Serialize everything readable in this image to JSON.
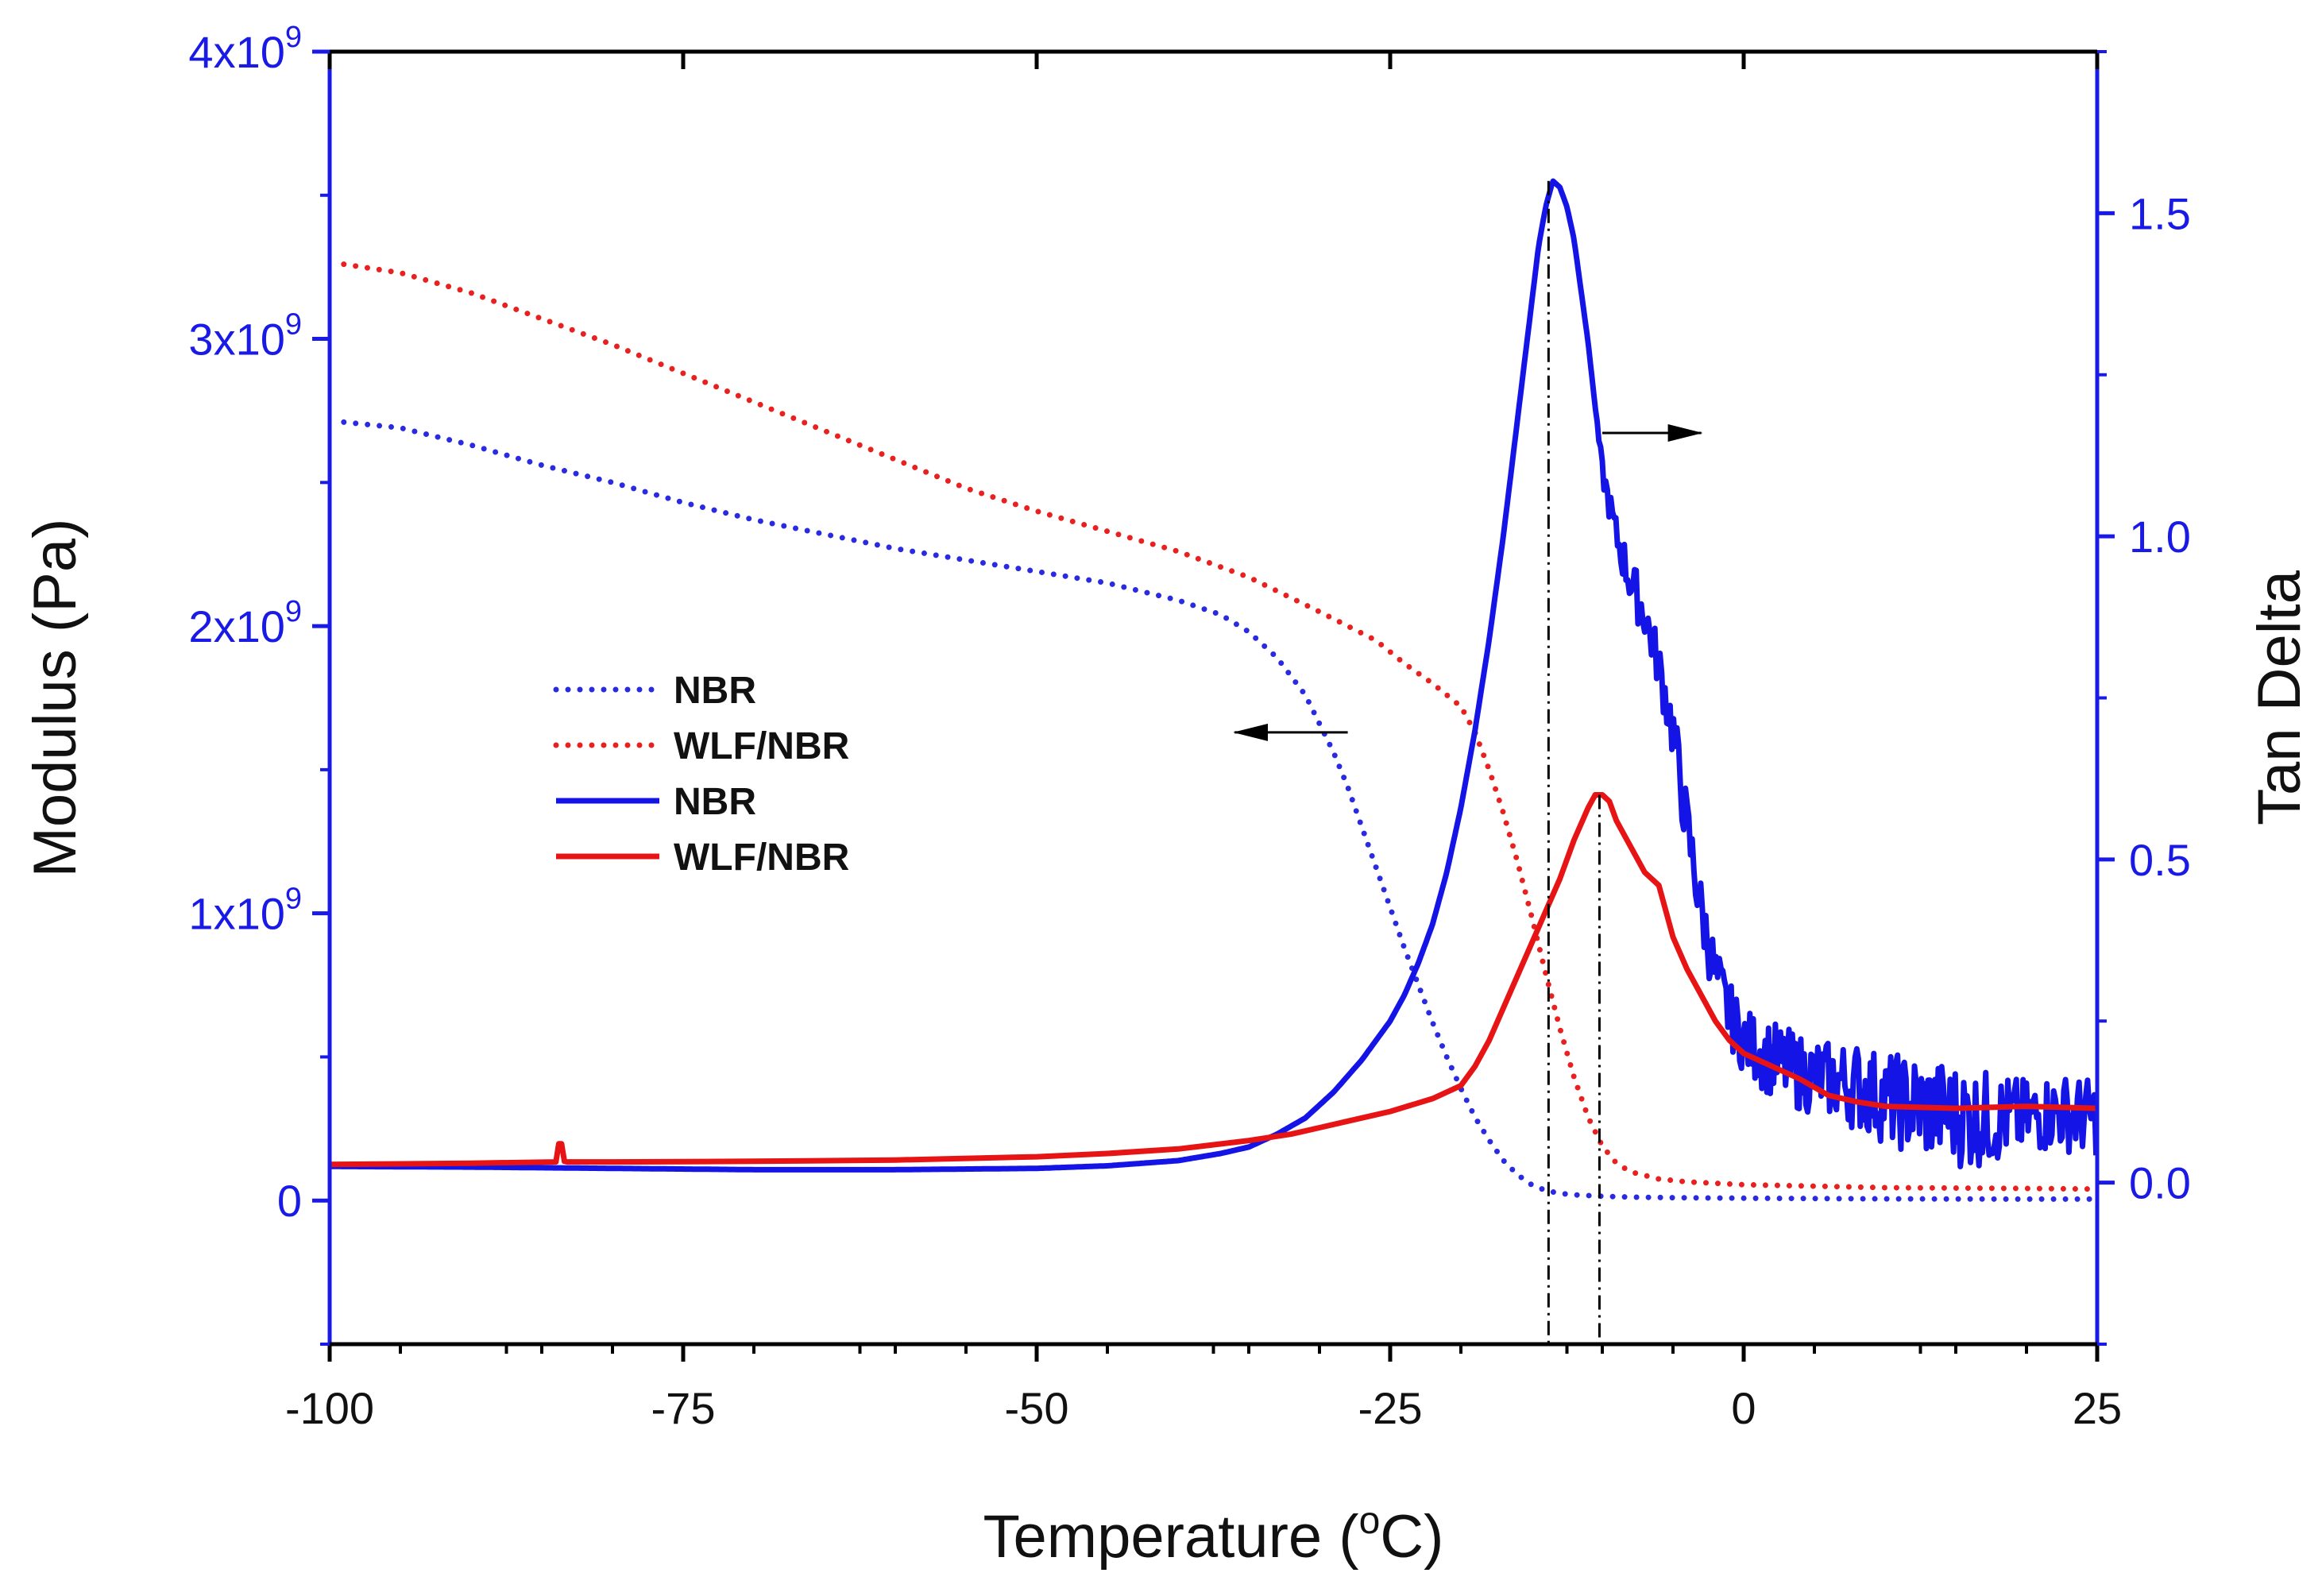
{
  "chart_data": {
    "type": "line",
    "title": "",
    "xlabel": "Temperature (",
    "xlabel_sup": "o",
    "xlabel_tail": "C)",
    "ylabel_left": "Modulus (Pa)",
    "ylabel_right": "Tan Delta",
    "xlim": [
      -100,
      25
    ],
    "ylim_left": [
      -500000000,
      4000000000
    ],
    "ylim_right": [
      -0.25,
      1.75
    ],
    "x_ticks": [
      -100,
      -75,
      -50,
      -25,
      0,
      25
    ],
    "x_tick_labels": [
      "-100",
      "-75",
      "-50",
      "-25",
      "0",
      "25"
    ],
    "y_left_ticks": [
      {
        "value": 0,
        "base": "0",
        "exp": ""
      },
      {
        "value": 1000000000,
        "base": "1x10",
        "exp": "9"
      },
      {
        "value": 2000000000,
        "base": "2x10",
        "exp": "9"
      },
      {
        "value": 3000000000,
        "base": "3x10",
        "exp": "9"
      },
      {
        "value": 4000000000,
        "base": "4x10",
        "exp": "9"
      }
    ],
    "y_right_ticks": [
      0.0,
      0.5,
      1.0,
      1.5
    ],
    "y_right_tick_labels": [
      "0.0",
      "0.5",
      "1.0",
      "1.5"
    ],
    "left_axis_color": "#1a1ae6",
    "right_axis_color": "#1a1ae6",
    "series": [
      {
        "name": "NBR",
        "axis": "left",
        "style": "dotted",
        "color": "#2a2ae0",
        "x": [
          -99,
          -95,
          -90,
          -85,
          -80,
          -75,
          -70,
          -65,
          -60,
          -55,
          -50,
          -45,
          -40,
          -37,
          -35,
          -33,
          -31,
          -30,
          -29,
          -28,
          -27,
          -26,
          -25,
          -24,
          -23,
          -22,
          -21,
          -20,
          -19,
          -18,
          -17,
          -16,
          -15,
          -14,
          -13,
          -12,
          -10,
          -8,
          -5,
          0,
          10,
          20,
          25
        ],
        "y": [
          2710000000,
          2690000000,
          2630000000,
          2560000000,
          2500000000,
          2430000000,
          2370000000,
          2320000000,
          2270000000,
          2230000000,
          2190000000,
          2150000000,
          2090000000,
          2040000000,
          1980000000,
          1890000000,
          1760000000,
          1660000000,
          1560000000,
          1440000000,
          1300000000,
          1160000000,
          1020000000,
          880000000,
          750000000,
          620000000,
          500000000,
          390000000,
          290000000,
          210000000,
          140000000,
          90000000,
          55000000,
          35000000,
          25000000,
          20000000,
          15000000,
          12000000,
          10000000,
          8000000,
          6000000,
          5000000,
          5000000
        ]
      },
      {
        "name": "WLF/NBR",
        "axis": "left",
        "style": "dotted",
        "color": "#e82020",
        "x": [
          -99,
          -95,
          -90,
          -85,
          -80,
          -75,
          -70,
          -65,
          -60,
          -55,
          -50,
          -45,
          -40,
          -35,
          -30,
          -26,
          -24,
          -22,
          -20,
          -19,
          -18,
          -17,
          -16,
          -15,
          -14,
          -13,
          -12,
          -11,
          -10,
          -9,
          -8,
          -6,
          -4,
          0,
          5,
          10,
          20,
          25
        ],
        "y": [
          3260000000,
          3230000000,
          3160000000,
          3070000000,
          2980000000,
          2880000000,
          2780000000,
          2680000000,
          2580000000,
          2480000000,
          2400000000,
          2330000000,
          2260000000,
          2170000000,
          2050000000,
          1950000000,
          1870000000,
          1800000000,
          1720000000,
          1630000000,
          1500000000,
          1350000000,
          1180000000,
          990000000,
          790000000,
          600000000,
          430000000,
          290000000,
          190000000,
          130000000,
          100000000,
          75000000,
          65000000,
          55000000,
          50000000,
          45000000,
          42000000,
          40000000
        ]
      },
      {
        "name": "NBR",
        "axis": "right",
        "style": "solid",
        "color": "#1414e6",
        "x": [
          -100,
          -90,
          -80,
          -70,
          -60,
          -50,
          -45,
          -40,
          -37,
          -35,
          -33,
          -31,
          -30,
          -29,
          -28,
          -27,
          -26,
          -25,
          -24,
          -23,
          -22,
          -21,
          -20,
          -19,
          -18,
          -17,
          -16,
          -15,
          -14.5,
          -14,
          -13.5,
          -13,
          -12.5,
          -12,
          -11.5,
          -11,
          -10.5,
          -10,
          -9,
          -8,
          -7,
          -6,
          -5,
          -4,
          -3,
          -2,
          -1,
          0,
          2,
          4,
          6,
          8,
          10,
          12,
          14,
          16,
          18,
          20,
          22,
          25
        ],
        "y": [
          0.025,
          0.024,
          0.022,
          0.02,
          0.02,
          0.022,
          0.026,
          0.034,
          0.045,
          0.055,
          0.075,
          0.1,
          0.12,
          0.14,
          0.165,
          0.19,
          0.22,
          0.25,
          0.29,
          0.34,
          0.4,
          0.48,
          0.58,
          0.7,
          0.84,
          1.0,
          1.18,
          1.36,
          1.45,
          1.51,
          1.55,
          1.54,
          1.51,
          1.46,
          1.38,
          1.3,
          1.2,
          1.1,
          1.0,
          0.93,
          0.88,
          0.8,
          0.7,
          0.55,
          0.42,
          0.32,
          0.26,
          0.22,
          0.19,
          0.17,
          0.16,
          0.15,
          0.13,
          0.12,
          0.11,
          0.1,
          0.1,
          0.1,
          0.11,
          0.1
        ],
        "noise": [
          0,
          0,
          0,
          0,
          0,
          0,
          0,
          0,
          0,
          0,
          0,
          0,
          0,
          0,
          0,
          0,
          0,
          0,
          0,
          0,
          0,
          0,
          0,
          0,
          0,
          0,
          0,
          0,
          0,
          0,
          0,
          0,
          0,
          0,
          0,
          0,
          0,
          0.02,
          0.03,
          0.04,
          0.04,
          0.04,
          0.05,
          0.05,
          0.05,
          0.05,
          0.05,
          0.05,
          0.06,
          0.06,
          0.06,
          0.07,
          0.07,
          0.08,
          0.08,
          0.08,
          0.07,
          0.06,
          0.06,
          0.06
        ]
      },
      {
        "name": "WLF/NBR",
        "axis": "right",
        "style": "solid",
        "color": "#e61414",
        "x": [
          -100,
          -90,
          -84,
          -83.8,
          -83.6,
          -83.4,
          -83.2,
          -80,
          -70,
          -60,
          -50,
          -45,
          -40,
          -35,
          -32,
          -30,
          -28,
          -25,
          -22,
          -20,
          -19,
          -18,
          -17,
          -16,
          -15,
          -14,
          -13,
          -12,
          -11,
          -10.5,
          -10,
          -9.5,
          -9,
          -8,
          -7,
          -6,
          -5,
          -4,
          -3,
          -2,
          -1,
          0,
          2,
          4,
          6,
          8,
          10,
          15,
          20,
          25
        ],
        "y": [
          0.028,
          0.03,
          0.032,
          0.06,
          0.06,
          0.033,
          0.032,
          0.032,
          0.033,
          0.035,
          0.04,
          0.045,
          0.052,
          0.065,
          0.075,
          0.085,
          0.095,
          0.11,
          0.13,
          0.15,
          0.18,
          0.22,
          0.27,
          0.32,
          0.37,
          0.42,
          0.47,
          0.53,
          0.58,
          0.6,
          0.6,
          0.59,
          0.56,
          0.52,
          0.48,
          0.46,
          0.38,
          0.33,
          0.29,
          0.25,
          0.22,
          0.2,
          0.18,
          0.16,
          0.135,
          0.125,
          0.118,
          0.115,
          0.118,
          0.115
        ]
      }
    ],
    "legend": [
      {
        "label": "NBR",
        "style": "dotted",
        "color": "#2a2ae0"
      },
      {
        "label": "WLF/NBR",
        "style": "dotted",
        "color": "#e82020"
      },
      {
        "label": "NBR",
        "style": "solid",
        "color": "#1414e6"
      },
      {
        "label": "WLF/NBR",
        "style": "solid",
        "color": "#e61414"
      }
    ],
    "legend_position": "center-left",
    "annotations": [
      {
        "type": "arrow",
        "direction": "left",
        "target_axis": "left",
        "y_data": 1630000000,
        "x_start": -28,
        "x_end": -36
      },
      {
        "type": "arrow",
        "direction": "right",
        "target_axis": "right",
        "y_data": 1.16,
        "x_start": -10,
        "x_end": -3
      },
      {
        "type": "vline",
        "x": -13.8,
        "y_right_top": 1.55,
        "y_right_bottom": -0.25
      },
      {
        "type": "vline",
        "x": -10.2,
        "y_right_top": 0.6,
        "y_right_bottom": -0.25
      }
    ]
  }
}
